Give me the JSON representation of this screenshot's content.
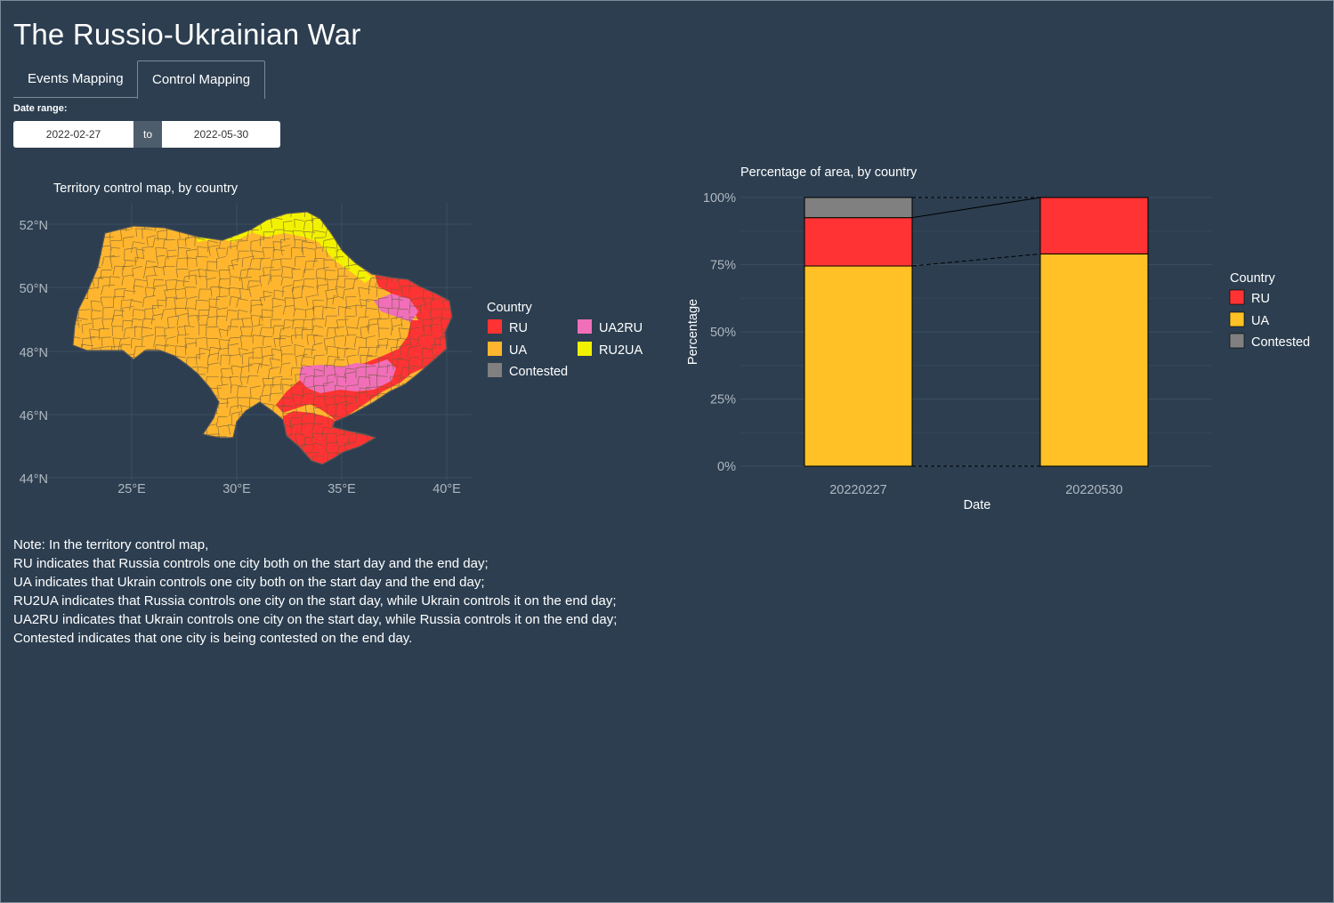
{
  "app": {
    "title": "The Russio-Ukrainian War"
  },
  "tabs": [
    {
      "label": "Events Mapping",
      "active": false
    },
    {
      "label": "Control Mapping",
      "active": true
    }
  ],
  "date_range": {
    "label": "Date range:",
    "start": "2022-02-27",
    "separator": "to",
    "end": "2022-05-30"
  },
  "map": {
    "title": "Territory control map, by country",
    "lat_ticks": [
      "52°N",
      "50°N",
      "48°N",
      "46°N",
      "44°N"
    ],
    "lon_ticks": [
      "25°E",
      "30°E",
      "35°E",
      "40°E"
    ],
    "legend_title": "Country",
    "legend": [
      {
        "label": "RU",
        "color": "#ff3333"
      },
      {
        "label": "UA",
        "color": "#ffb62e"
      },
      {
        "label": "Contested",
        "color": "#808080"
      },
      {
        "label": "UA2RU",
        "color": "#f06fb8"
      },
      {
        "label": "RU2UA",
        "color": "#f2f200"
      }
    ]
  },
  "chart_data": {
    "type": "bar",
    "title": "Percentage of area, by country",
    "xlabel": "Date",
    "ylabel": "Percentage",
    "categories": [
      "20220227",
      "20220530"
    ],
    "y_ticks": [
      "0%",
      "25%",
      "50%",
      "75%",
      "100%"
    ],
    "ylim": [
      0,
      100
    ],
    "stacked": true,
    "legend_title": "Country",
    "legend_position": "right",
    "series": [
      {
        "name": "UA",
        "color": "#ffc125",
        "values": [
          74.5,
          79
        ]
      },
      {
        "name": "RU",
        "color": "#ff3333",
        "values": [
          18,
          21
        ]
      },
      {
        "name": "Contested",
        "color": "#808080",
        "values": [
          7.5,
          0
        ]
      }
    ]
  },
  "note": {
    "lines": [
      "Note: In the territory control map,",
      "RU indicates that Russia controls one city both on the start day and the end day;",
      "UA indicates that Ukrain controls one city both on the start day and the end day;",
      "RU2UA indicates that Russia controls one city on the start day, while Ukrain controls it on the end day;",
      "UA2RU indicates that Ukrain controls one city on the start day, while Russia controls it on the end day;",
      "Contested indicates that one city is being contested on the end day."
    ]
  }
}
